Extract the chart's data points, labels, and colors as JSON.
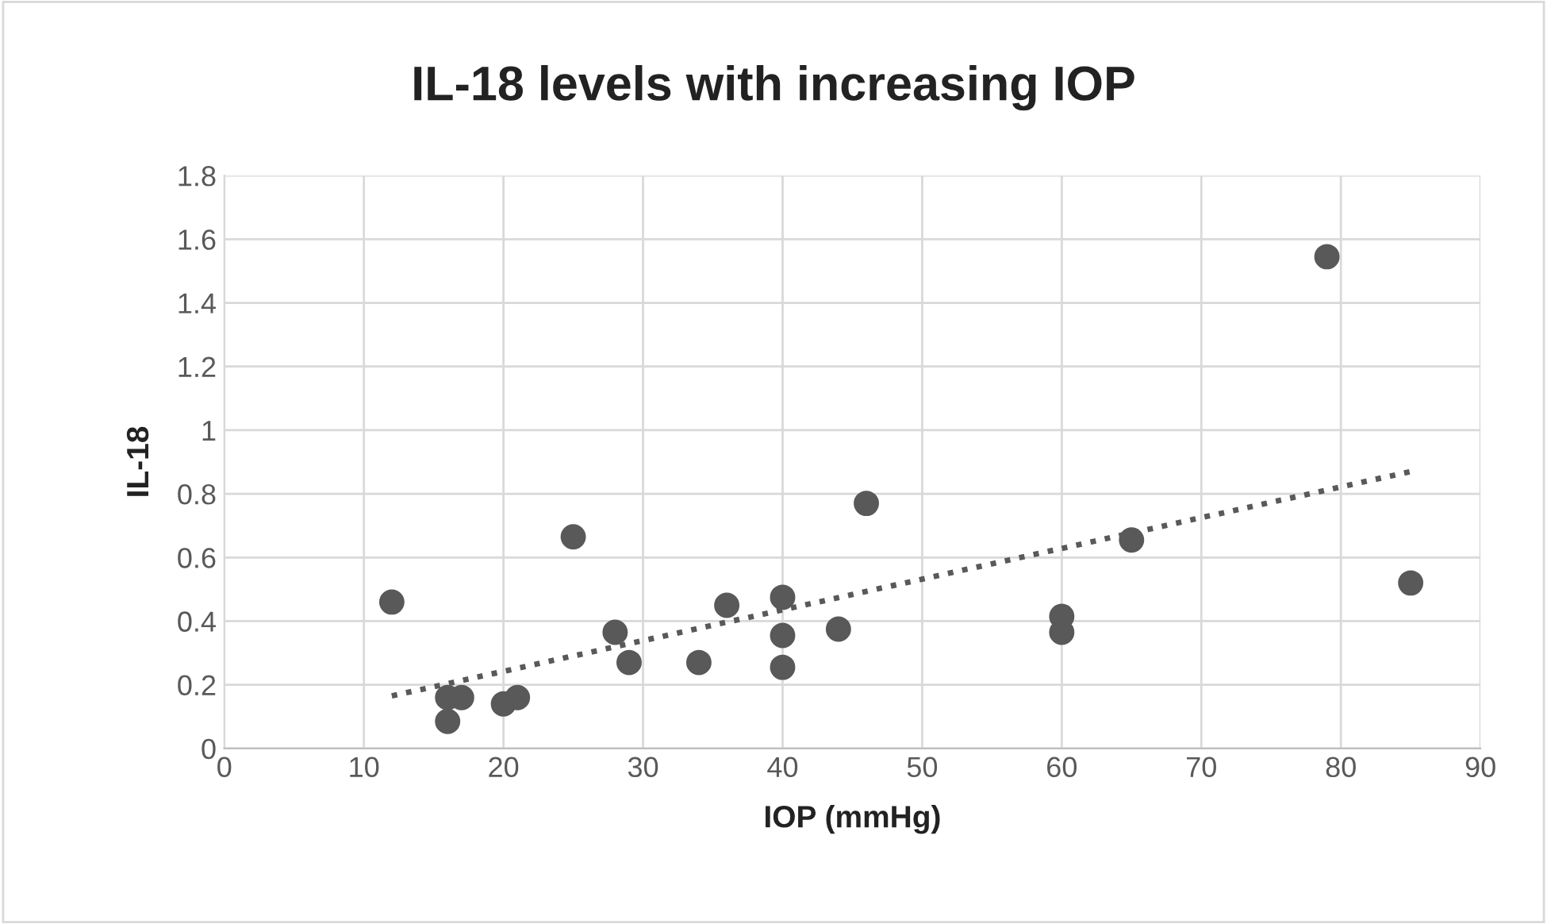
{
  "chart_data": {
    "type": "scatter",
    "title": "IL-18 levels with increasing IOP",
    "xlabel": "IOP (mmHg)",
    "ylabel": "IL-18",
    "xlim": [
      0,
      90
    ],
    "xticks": [
      0,
      10,
      20,
      30,
      40,
      50,
      60,
      70,
      80,
      90
    ],
    "ylim": [
      0,
      1.8
    ],
    "yticks": [
      0,
      {
        "value": 0.2,
        "label": "0.2"
      },
      {
        "value": 0.4,
        "label": "0.4"
      },
      {
        "value": 0.6,
        "label": "0.6"
      },
      {
        "value": 0.8,
        "label": "0.8"
      },
      1,
      {
        "value": 1.2,
        "label": "1.2"
      },
      {
        "value": 1.4,
        "label": "1.4"
      },
      {
        "value": 1.6,
        "label": "1.6"
      },
      {
        "value": 1.8,
        "label": "1.8"
      }
    ],
    "grid": true,
    "legend": false,
    "series": [
      {
        "type": "scatter",
        "color": "#595959",
        "marker": "circle",
        "x": [
          12,
          16,
          16,
          17,
          20,
          21,
          25,
          28,
          29,
          34,
          36,
          40,
          40,
          40,
          44,
          46,
          60,
          60,
          65,
          79,
          85
        ],
        "values": [
          0.46,
          0.16,
          0.085,
          0.16,
          0.14,
          0.16,
          0.665,
          0.365,
          0.27,
          0.27,
          0.45,
          0.475,
          0.355,
          0.255,
          0.375,
          0.77,
          0.415,
          0.365,
          0.655,
          1.545,
          0.52
        ]
      },
      {
        "type": "line",
        "color": "#595959",
        "marker": "none",
        "line_style": "dotted",
        "x": [
          12,
          85
        ],
        "values": [
          0.165,
          0.87
        ]
      }
    ]
  }
}
